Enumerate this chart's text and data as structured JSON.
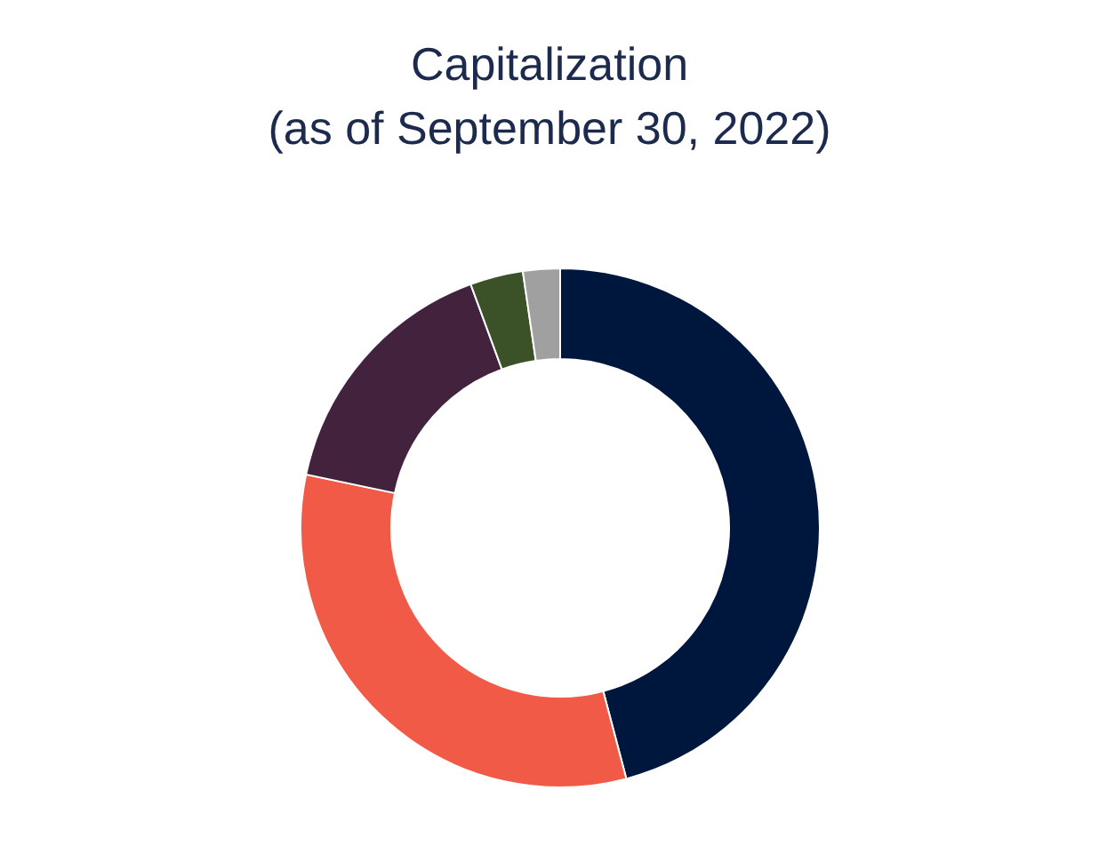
{
  "chart_data": {
    "type": "donut",
    "title": "Capitalization",
    "subtitle": "(as of September 30, 2022)",
    "categories": [
      null,
      null,
      null,
      null,
      null
    ],
    "values": [
      45.9,
      32.4,
      16.1,
      3.3,
      2.3
    ],
    "colors": [
      "#00173d",
      "#f05a46",
      "#43223d",
      "#3b5127",
      "#a0a0a0"
    ]
  }
}
